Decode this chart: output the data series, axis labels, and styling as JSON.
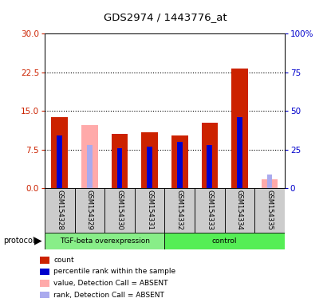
{
  "title": "GDS2974 / 1443776_at",
  "samples": [
    "GSM154328",
    "GSM154329",
    "GSM154330",
    "GSM154331",
    "GSM154332",
    "GSM154333",
    "GSM154334",
    "GSM154335"
  ],
  "red_values": [
    13.8,
    null,
    10.5,
    10.8,
    10.2,
    12.7,
    23.3,
    null
  ],
  "blue_pct": [
    34.0,
    null,
    26.0,
    27.0,
    30.0,
    28.0,
    46.0,
    null
  ],
  "pink_values": [
    null,
    12.2,
    null,
    null,
    null,
    null,
    null,
    1.8
  ],
  "lb_pct": [
    null,
    28.0,
    null,
    null,
    null,
    null,
    null,
    9.0
  ],
  "groups": [
    "TGF-beta overexpression",
    "TGF-beta overexpression",
    "TGF-beta overexpression",
    "TGF-beta overexpression",
    "control",
    "control",
    "control",
    "control"
  ],
  "left_yticks": [
    0,
    7.5,
    15,
    22.5,
    30
  ],
  "right_yticks": [
    0,
    25,
    50,
    75,
    100
  ],
  "left_color": "#cc2200",
  "right_color": "#0000cc",
  "red_color": "#cc2200",
  "blue_color": "#0000cc",
  "pink_color": "#ffaaaa",
  "lightblue_color": "#aaaaee",
  "tgf_color": "#88ee88",
  "ctrl_color": "#55ee55"
}
